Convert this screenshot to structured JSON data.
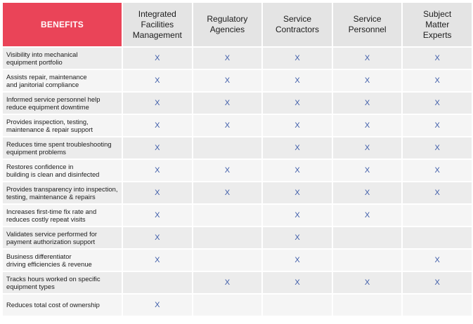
{
  "header": {
    "benefits_label": "BENEFITS",
    "groups": [
      "Integrated\nFacilities\nManagement",
      "Regulatory\nAgencies",
      "Service\nContractors",
      "Service\nPersonnel",
      "Subject\nMatter\nExperts"
    ]
  },
  "mark": "X",
  "colors": {
    "header_accent": "#ea4458",
    "mark": "#3b5aa8",
    "header_gray": "#e4e4e4"
  },
  "rows": [
    {
      "benefit": "Visibility into mechanical\nequipment portfolio",
      "marks": [
        "X",
        "X",
        "X",
        "X",
        "X"
      ]
    },
    {
      "benefit": "Assists repair, maintenance\nand janitorial compliance",
      "marks": [
        "X",
        "X",
        "X",
        "X",
        "X"
      ]
    },
    {
      "benefit": "Informed service personnel help\nreduce equipment downtime",
      "marks": [
        "X",
        "X",
        "X",
        "X",
        "X"
      ]
    },
    {
      "benefit": "Provides inspection, testing,\nmaintenance & repair support",
      "marks": [
        "X",
        "X",
        "X",
        "X",
        "X"
      ]
    },
    {
      "benefit": "Reduces time spent troubleshooting\nequipment problems",
      "marks": [
        "X",
        "",
        "X",
        "X",
        "X"
      ]
    },
    {
      "benefit": "Restores confidence in\nbuilding is clean and disinfected",
      "marks": [
        "X",
        "X",
        "X",
        "X",
        "X"
      ]
    },
    {
      "benefit": "Provides transparency into inspection,\ntesting, maintenance & repairs",
      "marks": [
        "X",
        "X",
        "X",
        "X",
        "X"
      ]
    },
    {
      "benefit": "Increases first-time fix rate and\nreduces costly repeat visits",
      "marks": [
        "X",
        "",
        "X",
        "X",
        ""
      ]
    },
    {
      "benefit": "Validates service performed for\npayment authorization support",
      "marks": [
        "X",
        "",
        "X",
        "",
        ""
      ]
    },
    {
      "benefit": "Business differentiator\ndriving efficiencies & revenue",
      "marks": [
        "X",
        "",
        "X",
        "",
        "X"
      ]
    },
    {
      "benefit": "Tracks hours worked on specific\nequipment types",
      "marks": [
        "",
        "X",
        "X",
        "X",
        "X"
      ]
    },
    {
      "benefit": "Reduces total cost of ownership",
      "marks": [
        "X",
        "",
        "",
        "",
        ""
      ]
    }
  ]
}
